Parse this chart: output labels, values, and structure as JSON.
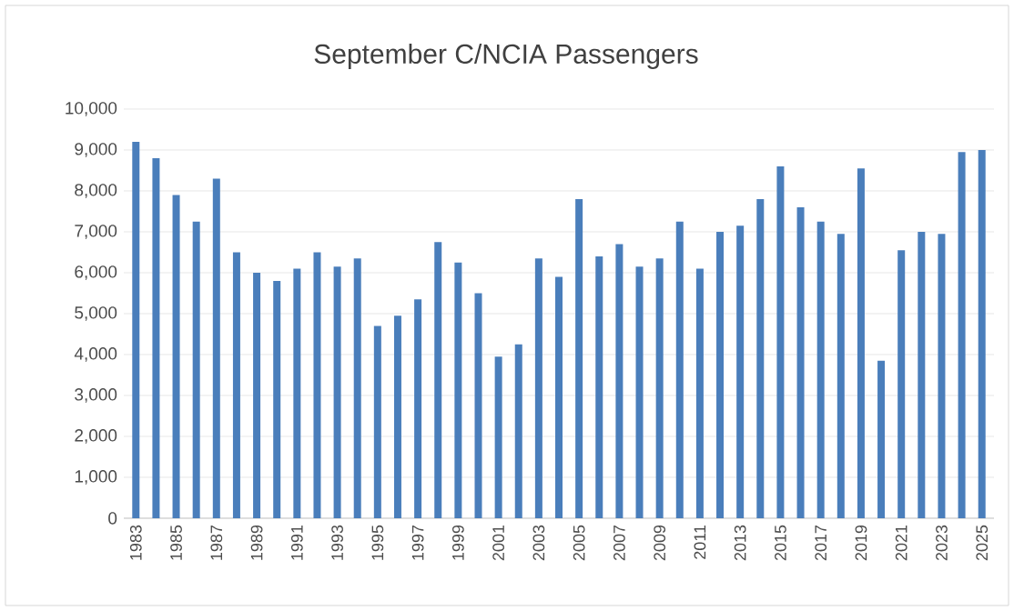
{
  "chart_data": {
    "type": "bar",
    "title": "September C/NCIA Passengers",
    "categories": [
      "1983",
      null,
      "1985",
      null,
      "1987",
      null,
      "1989",
      null,
      "1991",
      null,
      "1993",
      null,
      "1995",
      null,
      "1997",
      null,
      "1999",
      null,
      "2001",
      null,
      "2003",
      null,
      "2005",
      null,
      "2007",
      null,
      "2009",
      null,
      "2011",
      null,
      "2013",
      null,
      "2015",
      null,
      "2017",
      null,
      "2019",
      null,
      "2021",
      null,
      "2023",
      null,
      "2025"
    ],
    "values": [
      9200,
      8800,
      7900,
      7250,
      8300,
      6500,
      6000,
      5800,
      6100,
      6500,
      6150,
      6350,
      4700,
      4950,
      5350,
      6750,
      6250,
      5500,
      3950,
      4250,
      6350,
      5900,
      7800,
      6400,
      6700,
      6150,
      6350,
      7250,
      6100,
      7000,
      7150,
      7800,
      8600,
      7600,
      7250,
      6950,
      8550,
      3850,
      6550,
      7000,
      6950,
      8950,
      9000
    ],
    "color": "#4a7ebb",
    "ylim": [
      0,
      10000
    ],
    "yticks": [
      {
        "value": 0,
        "label": "0"
      },
      {
        "value": 1000,
        "label": "1,000"
      },
      {
        "value": 2000,
        "label": "2,000"
      },
      {
        "value": 3000,
        "label": "3,000"
      },
      {
        "value": 4000,
        "label": "4,000"
      },
      {
        "value": 5000,
        "label": "5,000"
      },
      {
        "value": 6000,
        "label": "6,000"
      },
      {
        "value": 7000,
        "label": "7,000"
      },
      {
        "value": 8000,
        "label": "8,000"
      },
      {
        "value": 9000,
        "label": "9,000"
      },
      {
        "value": 10000,
        "label": "10,000"
      }
    ],
    "grid": "y"
  }
}
